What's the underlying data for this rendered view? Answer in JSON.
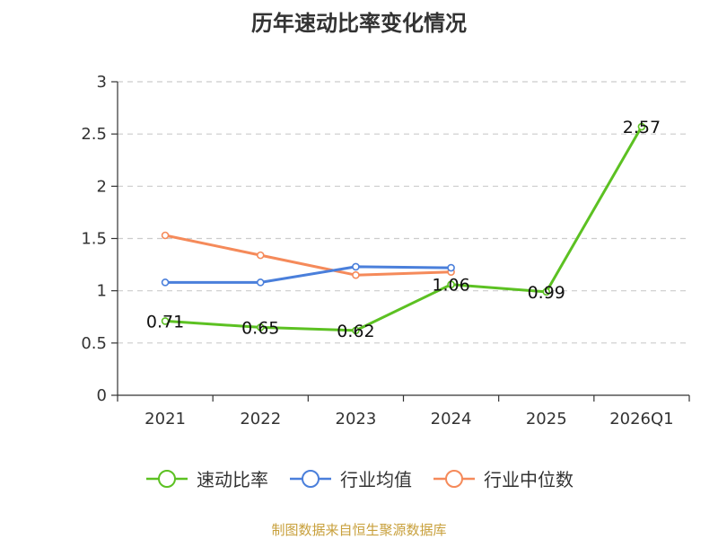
{
  "chart_data": {
    "type": "line",
    "title": "历年速动比率变化情况",
    "categories": [
      "2021",
      "2022",
      "2023",
      "2024",
      "2025",
      "2026Q1"
    ],
    "yticks": [
      "0",
      "0.5",
      "1",
      "1.5",
      "2",
      "2.5",
      "3"
    ],
    "ylim": [
      0,
      3
    ],
    "grid": true,
    "legend_position": "bottom",
    "series": [
      {
        "name": "速动比率",
        "color": "#5cc122",
        "values": [
          0.71,
          0.65,
          0.62,
          1.06,
          0.99,
          2.57
        ],
        "labels": [
          "0.71",
          "0.65",
          "0.62",
          "1.06",
          "0.99",
          "2.57"
        ]
      },
      {
        "name": "行业均值",
        "color": "#4a7fdb",
        "values": [
          1.08,
          1.08,
          1.23,
          1.22,
          null,
          null
        ]
      },
      {
        "name": "行业中位数",
        "color": "#f58a5a",
        "values": [
          1.53,
          1.34,
          1.15,
          1.18,
          null,
          null
        ]
      }
    ]
  },
  "footer": {
    "source": "制图数据来自恒生聚源数据库"
  }
}
